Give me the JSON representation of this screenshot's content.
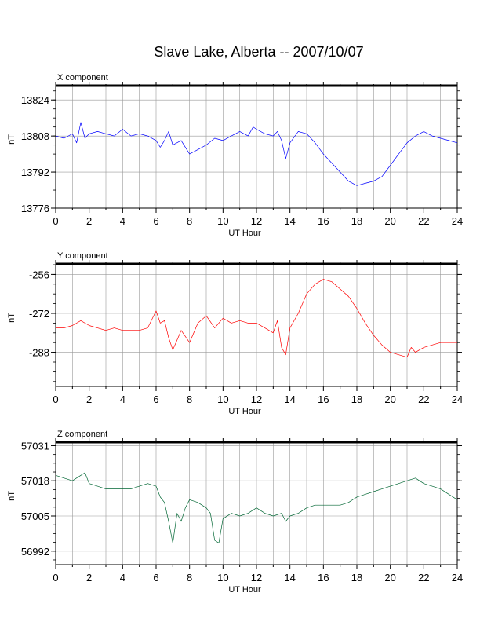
{
  "title": "Slave Lake, Alberta -- 2007/10/07",
  "chart_data": [
    {
      "type": "line",
      "panel_title": "X component",
      "xlabel": "UT Hour",
      "ylabel": "nT",
      "xlim": [
        0,
        24
      ],
      "ylim": [
        13776,
        13830
      ],
      "xticks": [
        0,
        2,
        4,
        6,
        8,
        10,
        12,
        14,
        16,
        18,
        20,
        22,
        24
      ],
      "yticks": [
        13776,
        13792,
        13808,
        13824
      ],
      "grid": true,
      "color": "#0000ff",
      "series": [
        {
          "x": [
            0,
            0.5,
            1.0,
            1.25,
            1.5,
            1.75,
            2.0,
            2.5,
            3.0,
            3.5,
            4.0,
            4.5,
            5.0,
            5.5,
            6.0,
            6.25,
            6.5,
            6.75,
            7.0,
            7.5,
            8.0,
            8.5,
            9.0,
            9.5,
            10.0,
            10.5,
            11.0,
            11.5,
            11.8,
            12.0,
            12.5,
            13.0,
            13.25,
            13.5,
            13.75,
            14.0,
            14.5,
            15.0,
            15.5,
            16.0,
            16.5,
            17.0,
            17.5,
            18.0,
            18.5,
            19.0,
            19.5,
            20.0,
            20.5,
            21.0,
            21.5,
            22.0,
            22.5,
            23.0,
            23.5,
            24.0
          ],
          "y": [
            13808,
            13807,
            13809,
            13805,
            13814,
            13807,
            13809,
            13810,
            13809,
            13808,
            13811,
            13808,
            13809,
            13808,
            13806,
            13803,
            13806,
            13810,
            13804,
            13806,
            13800,
            13802,
            13804,
            13807,
            13806,
            13808,
            13810,
            13808,
            13812,
            13811,
            13809,
            13808,
            13810,
            13806,
            13798,
            13805,
            13810,
            13809,
            13805,
            13800,
            13796,
            13792,
            13788,
            13786,
            13787,
            13788,
            13790,
            13795,
            13800,
            13805,
            13808,
            13810,
            13808,
            13807,
            13806,
            13805
          ]
        }
      ]
    },
    {
      "type": "line",
      "panel_title": "Y component",
      "xlabel": "UT Hour",
      "ylabel": "nT",
      "xlim": [
        0,
        24
      ],
      "ylim": [
        -302,
        -252
      ],
      "xticks": [
        0,
        2,
        4,
        6,
        8,
        10,
        12,
        14,
        16,
        18,
        20,
        22,
        24
      ],
      "yticks": [
        -288,
        -272,
        -256
      ],
      "grid": true,
      "color": "#ff0000",
      "series": [
        {
          "x": [
            0,
            0.5,
            1.0,
            1.5,
            2.0,
            2.5,
            3.0,
            3.5,
            4.0,
            4.5,
            5.0,
            5.5,
            6.0,
            6.25,
            6.5,
            6.75,
            7.0,
            7.25,
            7.5,
            8.0,
            8.5,
            9.0,
            9.5,
            10.0,
            10.5,
            11.0,
            11.5,
            12.0,
            12.5,
            13.0,
            13.25,
            13.5,
            13.75,
            14.0,
            14.5,
            15.0,
            15.5,
            16.0,
            16.5,
            17.0,
            17.5,
            18.0,
            18.5,
            19.0,
            19.5,
            20.0,
            20.5,
            21.0,
            21.25,
            21.5,
            22.0,
            22.5,
            23.0,
            23.5,
            24.0
          ],
          "y": [
            -278,
            -278,
            -277,
            -275,
            -277,
            -278,
            -279,
            -278,
            -279,
            -279,
            -279,
            -278,
            -271,
            -276,
            -275,
            -282,
            -287,
            -283,
            -279,
            -284,
            -276,
            -273,
            -278,
            -274,
            -276,
            -275,
            -276,
            -276,
            -278,
            -280,
            -275,
            -286,
            -289,
            -278,
            -272,
            -264,
            -260,
            -258,
            -259,
            -262,
            -265,
            -270,
            -276,
            -281,
            -285,
            -288,
            -289,
            -290,
            -286,
            -288,
            -286,
            -285,
            -284,
            -284,
            -284
          ]
        }
      ]
    },
    {
      "type": "line",
      "panel_title": "Z component",
      "xlabel": "UT Hour",
      "ylabel": "nT",
      "xlim": [
        0,
        24
      ],
      "ylim": [
        56987,
        57032
      ],
      "xticks": [
        0,
        2,
        4,
        6,
        8,
        10,
        12,
        14,
        16,
        18,
        20,
        22,
        24
      ],
      "yticks": [
        56992,
        57005,
        57018,
        57031
      ],
      "grid": true,
      "color": "#006633",
      "series": [
        {
          "x": [
            0,
            0.5,
            1.0,
            1.5,
            1.75,
            2.0,
            2.5,
            3.0,
            3.5,
            4.0,
            4.5,
            5.0,
            5.5,
            6.0,
            6.25,
            6.5,
            6.75,
            7.0,
            7.25,
            7.5,
            7.75,
            8.0,
            8.5,
            9.0,
            9.25,
            9.5,
            9.75,
            10.0,
            10.5,
            11.0,
            11.5,
            12.0,
            12.5,
            13.0,
            13.5,
            13.75,
            14.0,
            14.5,
            15.0,
            15.5,
            16.0,
            16.5,
            17.0,
            17.5,
            18.0,
            18.5,
            19.0,
            19.5,
            20.0,
            20.5,
            21.0,
            21.5,
            22.0,
            22.5,
            23.0,
            23.5,
            24.0
          ],
          "y": [
            57020,
            57019,
            57018,
            57020,
            57021,
            57017,
            57016,
            57015,
            57015,
            57015,
            57015,
            57016,
            57017,
            57016,
            57012,
            57010,
            57003,
            56995,
            57006,
            57003,
            57008,
            57011,
            57010,
            57008,
            57006,
            56996,
            56995,
            57004,
            57006,
            57005,
            57006,
            57008,
            57006,
            57005,
            57006,
            57003,
            57005,
            57006,
            57008,
            57009,
            57009,
            57009,
            57009,
            57010,
            57012,
            57013,
            57014,
            57015,
            57016,
            57017,
            57018,
            57019,
            57017,
            57016,
            57015,
            57013,
            57011
          ]
        }
      ]
    }
  ]
}
